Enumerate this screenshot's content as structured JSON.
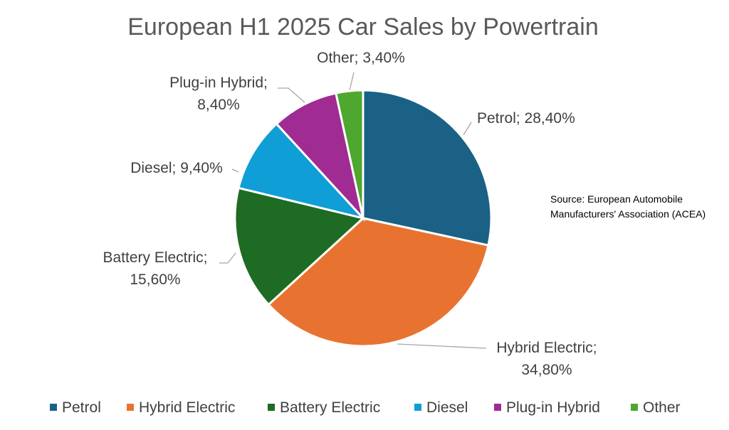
{
  "chart_data": {
    "type": "pie",
    "title": "European H1 2025 Car Sales by Powertrain",
    "source": "Source: European Automobile Manufacturers' Association (ACEA)",
    "source_lines": [
      "Source: European Automobile",
      "Manufacturers' Association (ACEA)"
    ],
    "legend_position": "bottom",
    "slices": [
      {
        "name": "Petrol",
        "value": 28.4,
        "label_lines": [
          "Petrol; 28,40%"
        ],
        "color": "#1a6185"
      },
      {
        "name": "Hybrid Electric",
        "value": 34.8,
        "label_lines": [
          "Hybrid Electric;",
          "34,80%"
        ],
        "color": "#e87331"
      },
      {
        "name": "Battery Electric",
        "value": 15.6,
        "label_lines": [
          "Battery Electric;",
          "15,60%"
        ],
        "color": "#1e6b23"
      },
      {
        "name": "Diesel",
        "value": 9.4,
        "label_lines": [
          "Diesel; 9,40%"
        ],
        "color": "#0f9ed5"
      },
      {
        "name": "Plug-in Hybrid",
        "value": 8.4,
        "label_lines": [
          "Plug-in Hybrid;",
          "8,40%"
        ],
        "color": "#a02b93"
      },
      {
        "name": "Other",
        "value": 3.4,
        "label_lines": [
          "Other; 3,40%"
        ],
        "color": "#4ea72e"
      }
    ]
  }
}
